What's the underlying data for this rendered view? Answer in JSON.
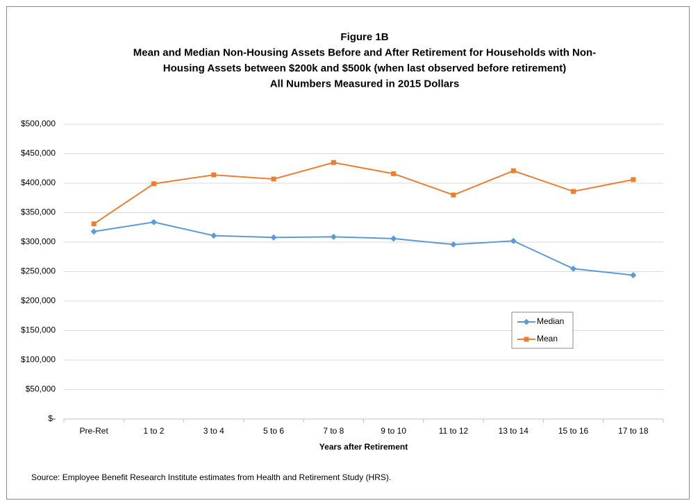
{
  "chart_data": {
    "type": "line",
    "title": [
      "Figure 1B",
      "Mean and Median Non-Housing Assets Before and After Retirement for Households with Non-",
      "Housing Assets between $200k and $500k (when last observed before retirement)",
      "All Numbers Measured in 2015 Dollars"
    ],
    "x_label": "Years after Retirement",
    "source": "Source: Employee Benefit Research Institute estimates from Health and Retirement Study (HRS).",
    "categories": [
      "Pre-Ret",
      "1 to 2",
      "3 to 4",
      "5 to 6",
      "7 to 8",
      "9 to 10",
      "11 to 12",
      "13 to 14",
      "15 to 16",
      "17 to 18"
    ],
    "series": [
      {
        "name": "Median",
        "color": "#5b9bd5",
        "marker": "diamond",
        "values": [
          318000,
          334000,
          311000,
          308000,
          309000,
          306000,
          296000,
          302000,
          255000,
          244000
        ]
      },
      {
        "name": "Mean",
        "color": "#ed7d31",
        "marker": "square",
        "values": [
          331000,
          399000,
          414000,
          407000,
          435000,
          416000,
          380000,
          421000,
          386000,
          406000
        ]
      }
    ],
    "ylim": [
      0,
      500000
    ],
    "yticks": [
      {
        "value": 0,
        "label": "$-"
      },
      {
        "value": 50000,
        "label": "$50,000"
      },
      {
        "value": 100000,
        "label": "$100,000"
      },
      {
        "value": 150000,
        "label": "$150,000"
      },
      {
        "value": 200000,
        "label": "$200,000"
      },
      {
        "value": 250000,
        "label": "$250,000"
      },
      {
        "value": 300000,
        "label": "$300,000"
      },
      {
        "value": 350000,
        "label": "$350,000"
      },
      {
        "value": 400000,
        "label": "$400,000"
      },
      {
        "value": 450000,
        "label": "$450,000"
      },
      {
        "value": 500000,
        "label": "$500,000"
      }
    ],
    "grid": true
  }
}
